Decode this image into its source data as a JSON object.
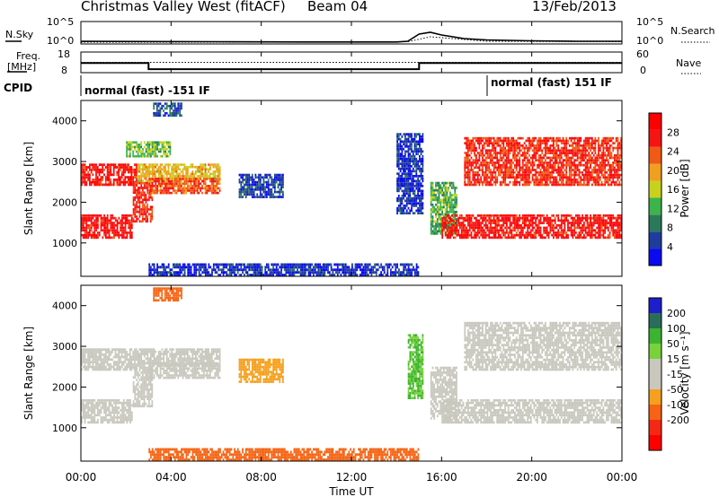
{
  "header": {
    "title": "Christmas Valley West (fitACF)",
    "beam": "Beam 04",
    "date": "13/Feb/2013"
  },
  "noise_panel": {
    "left_label": "N.Sky",
    "left_ticks": [
      "10^5",
      "10^0"
    ],
    "right_label": "N.Search",
    "right_ticks": [
      "10^5",
      "10^0"
    ]
  },
  "freq_panel": {
    "left_label_1": "Freq.",
    "left_label_2": "[MHz]",
    "left_ticks": [
      "18",
      "8"
    ],
    "right_label": "Nave",
    "right_ticks": [
      "60",
      "0"
    ]
  },
  "cpid": {
    "label": "CPID",
    "segments": [
      {
        "text": "normal (fast) -151 IF",
        "start_hour": 0.0
      },
      {
        "text": "normal (fast) 151 IF",
        "start_hour": 18.0
      }
    ]
  },
  "colors": {
    "power_scale": [
      "#0a0af0",
      "#1e3c9c",
      "#2a7a5a",
      "#3cb44b",
      "#c8d21e",
      "#f0a01e",
      "#f05a14",
      "#f51414",
      "#ff0000"
    ],
    "velocity_scale": [
      "#1e1ecc",
      "#2a6e5a",
      "#3cb432",
      "#78d23c",
      "#c8c8be",
      "#c8c8be",
      "#f5a01e",
      "#f56414",
      "#f52814",
      "#ff0000"
    ]
  },
  "chart_data": [
    {
      "type": "line",
      "name": "noise",
      "x_range_hours": [
        0,
        24
      ],
      "yscale": "log",
      "series": [
        {
          "name": "N.Sky",
          "style": "solid",
          "x": [
            0.0,
            0.05,
            3.0,
            6.0,
            10.0,
            14.0,
            14.5,
            15.0,
            15.5,
            16.0,
            17.0,
            18.0,
            20.0,
            22.0,
            24.0
          ],
          "log_y": [
            0.3,
            0.6,
            0.55,
            0.5,
            0.45,
            0.45,
            0.6,
            2.2,
            2.6,
            2.0,
            1.2,
            0.9,
            0.7,
            0.6,
            0.6
          ]
        },
        {
          "name": "N.Search",
          "style": "dotted",
          "x": [
            0.0,
            6.0,
            12.0,
            14.5,
            15.5,
            18.0,
            24.0
          ],
          "log_y": [
            0.4,
            0.4,
            0.4,
            0.5,
            1.6,
            0.6,
            0.5
          ]
        }
      ]
    },
    {
      "type": "line",
      "name": "frequency",
      "x_range_hours": [
        0,
        24
      ],
      "series": [
        {
          "name": "Freq.",
          "style": "solid",
          "x": [
            0.0,
            3.0,
            3.0,
            15.0,
            15.0,
            24.0
          ],
          "y": [
            12.7,
            12.7,
            9.7,
            9.7,
            12.7,
            12.7
          ]
        },
        {
          "name": "Nave",
          "style": "dotted",
          "x": [
            0.0,
            24.0
          ],
          "y": [
            30,
            30
          ]
        }
      ]
    },
    {
      "type": "heatmap",
      "name": "power",
      "xlabel": "",
      "ylabel": "Slant Range [km]",
      "x_range_hours": [
        0,
        24
      ],
      "ylim": [
        180,
        4500
      ],
      "yticks": [
        1000,
        2000,
        3000,
        4000
      ],
      "colorbar": {
        "label": "Power [dB]",
        "ticks": [
          4,
          8,
          12,
          16,
          20,
          24,
          28
        ],
        "range": [
          0,
          32
        ]
      },
      "regions": [
        {
          "t": [
            0.0,
            2.3
          ],
          "r": [
            1100,
            1700
          ],
          "value": 28
        },
        {
          "t": [
            0.0,
            2.5
          ],
          "r": [
            2400,
            2950
          ],
          "value": 28
        },
        {
          "t": [
            2.3,
            3.2
          ],
          "r": [
            1500,
            2500
          ],
          "value": 26
        },
        {
          "t": [
            2.5,
            6.2
          ],
          "r": [
            2500,
            2950
          ],
          "value": 18
        },
        {
          "t": [
            3.0,
            6.2
          ],
          "r": [
            2200,
            2600
          ],
          "value": 24
        },
        {
          "t": [
            2.0,
            4.0
          ],
          "r": [
            3100,
            3500
          ],
          "value": 14
        },
        {
          "t": [
            3.2,
            4.5
          ],
          "r": [
            4100,
            4450
          ],
          "value": 6
        },
        {
          "t": [
            7.0,
            9.0
          ],
          "r": [
            2100,
            2700
          ],
          "value": 5
        },
        {
          "t": [
            14.0,
            15.2
          ],
          "r": [
            1700,
            3700
          ],
          "value": 4
        },
        {
          "t": [
            15.5,
            16.7
          ],
          "r": [
            1200,
            2500
          ],
          "value": 12
        },
        {
          "t": [
            16.0,
            24.0
          ],
          "r": [
            1100,
            1700
          ],
          "value": 28
        },
        {
          "t": [
            17.0,
            24.0
          ],
          "r": [
            2400,
            3600
          ],
          "value": 26
        },
        {
          "t": [
            3.0,
            15.0
          ],
          "r": [
            180,
            500
          ],
          "value": 4
        }
      ]
    },
    {
      "type": "heatmap",
      "name": "velocity",
      "xlabel": "Time UT",
      "ylabel": "Slant Range [km]",
      "x_range_hours": [
        0,
        24
      ],
      "ylim": [
        180,
        4500
      ],
      "yticks": [
        1000,
        2000,
        3000,
        4000
      ],
      "xticks": [
        "00:00",
        "04:00",
        "08:00",
        "12:00",
        "16:00",
        "20:00",
        "00:00"
      ],
      "colorbar": {
        "label": "Velocity [m s⁻¹]",
        "ticks": [
          -200,
          -100,
          -50,
          -15,
          15,
          50,
          100,
          200
        ]
      },
      "regions": [
        {
          "t": [
            0.0,
            2.3
          ],
          "r": [
            1100,
            1700
          ],
          "value": 0
        },
        {
          "t": [
            0.0,
            2.5
          ],
          "r": [
            2400,
            2950
          ],
          "value": 0
        },
        {
          "t": [
            2.3,
            3.2
          ],
          "r": [
            1500,
            2500
          ],
          "value": 0
        },
        {
          "t": [
            2.5,
            6.2
          ],
          "r": [
            2500,
            2950
          ],
          "value": -10
        },
        {
          "t": [
            3.0,
            6.2
          ],
          "r": [
            2200,
            2600
          ],
          "value": 0
        },
        {
          "t": [
            3.2,
            4.5
          ],
          "r": [
            4100,
            4450
          ],
          "value": -60
        },
        {
          "t": [
            7.0,
            9.0
          ],
          "r": [
            2100,
            2700
          ],
          "value": -30
        },
        {
          "t": [
            14.5,
            15.2
          ],
          "r": [
            1700,
            3300
          ],
          "value": 50
        },
        {
          "t": [
            15.5,
            16.7
          ],
          "r": [
            1200,
            2500
          ],
          "value": 0
        },
        {
          "t": [
            16.0,
            24.0
          ],
          "r": [
            1100,
            1700
          ],
          "value": 0
        },
        {
          "t": [
            17.0,
            24.0
          ],
          "r": [
            2400,
            3600
          ],
          "value": 0
        },
        {
          "t": [
            3.0,
            15.0
          ],
          "r": [
            180,
            500
          ],
          "value": -60
        }
      ]
    }
  ]
}
